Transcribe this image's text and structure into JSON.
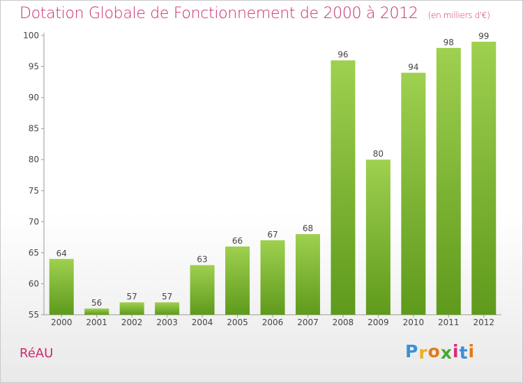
{
  "header": {
    "title": "Dotation Globale de Fonctionnement de 2000 à 2012",
    "subtitle": "(en milliers d'€)"
  },
  "footer": {
    "commune": "RéAU",
    "logo_letters": [
      "P",
      "r",
      "o",
      "x",
      "i",
      "t",
      "i"
    ],
    "logo_colors": [
      "#3a8fd8",
      "#e8b21c",
      "#e07a1a",
      "#4aa836",
      "#d62b7a",
      "#3a8fd8",
      "#e07a1a"
    ]
  },
  "chart_data": {
    "type": "bar",
    "categories": [
      "2000",
      "2001",
      "2002",
      "2003",
      "2004",
      "2005",
      "2006",
      "2007",
      "2008",
      "2009",
      "2010",
      "2011",
      "2012"
    ],
    "values": [
      64,
      56,
      57,
      57,
      63,
      66,
      67,
      68,
      96,
      80,
      94,
      98,
      99
    ],
    "ylim": [
      55,
      100
    ],
    "yticks": [
      55,
      60,
      65,
      70,
      75,
      80,
      85,
      90,
      95,
      100
    ],
    "grid": false,
    "bar_color": "#7dc13a"
  }
}
